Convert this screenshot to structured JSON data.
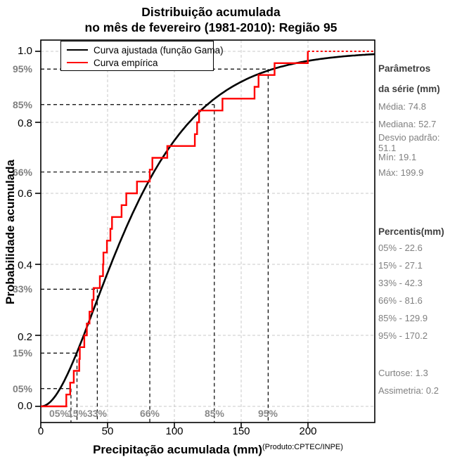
{
  "title": {
    "line1": "Distribuição acumulada",
    "line2": "no mês de fevereiro (1981-2010): Região 95"
  },
  "legend": {
    "items": [
      {
        "label": "Curva ajustada (função Gama)",
        "color": "#000000"
      },
      {
        "label": "Curva empírica",
        "color": "#ff0000"
      }
    ]
  },
  "axes": {
    "x": {
      "label": "Precipitação acumulada (mm)",
      "annotation": "(Produto:CPTEC/INPE)",
      "ticks": [
        "0",
        "50",
        "100",
        "150",
        "200"
      ]
    },
    "y": {
      "label": "Probabilidade acumulada",
      "ticks": [
        "1.0",
        "0.8",
        "0.6",
        "0.4",
        "0.2",
        "0.0"
      ],
      "percent_ticks": [
        "95%",
        "85%",
        "66%",
        "33%",
        "15%",
        "05%"
      ]
    }
  },
  "sidebar": {
    "params_title_line1": "Parâmetros",
    "params_title_line2": "da série (mm)",
    "params": [
      "Média: 74.8",
      "Mediana: 52.7",
      "Desvio padrão: 51.1",
      "Mín: 19.1",
      "Máx: 199.9"
    ],
    "percentis_title": "Percentis(mm)",
    "percentis": [
      "05% - 22.6",
      "15% - 27.1",
      "33% - 42.3",
      "66% - 81.6",
      "85% - 129.9",
      "95% - 170.2"
    ],
    "curtose": "Curtose: 1.3",
    "assimetria": "Assimetria: 0.2"
  },
  "chart_data": {
    "type": "line",
    "title": "Distribuição acumulada no mês de fevereiro (1981-2010): Região 95",
    "xlabel": "Precipitação acumulada (mm)",
    "ylabel": "Probabilidade acumulada",
    "xlim": [
      0,
      250
    ],
    "ylim": [
      0,
      1
    ],
    "x_ticks": [
      0,
      50,
      100,
      150,
      200
    ],
    "y_ticks": [
      0.0,
      0.2,
      0.4,
      0.6,
      0.8,
      1.0
    ],
    "grid": true,
    "legend_position": "top-left",
    "colors": {
      "fitted": "#000000",
      "empirical": "#ff0000",
      "grid": "#c9c9c9",
      "guide": "#000000",
      "muted_label": "#7f7f7f"
    },
    "series": [
      {
        "name": "Curva ajustada (função Gama)",
        "color": "#000000",
        "model": "gamma_cdf",
        "shape": 2.14,
        "scale": 34.95
      },
      {
        "name": "Curva empírica",
        "color": "#ff0000",
        "model": "empirical_cdf",
        "values": [
          19.1,
          22.0,
          24.7,
          28.8,
          29.2,
          32.6,
          34.5,
          36.5,
          38.5,
          39.5,
          44.2,
          46.6,
          46.9,
          49.5,
          52.1,
          53.3,
          60.5,
          64.0,
          72.0,
          81.6,
          83.5,
          94.7,
          115.3,
          117.0,
          118.5,
          136.0,
          160.0,
          163.0,
          175.0,
          199.9
        ]
      }
    ],
    "percentile_guides": [
      {
        "label": "05%",
        "p": 0.05,
        "value": 22.6
      },
      {
        "label": "15%",
        "p": 0.15,
        "value": 27.1
      },
      {
        "label": "33%",
        "p": 0.33,
        "value": 42.3
      },
      {
        "label": "66%",
        "p": 0.66,
        "value": 81.6
      },
      {
        "label": "85%",
        "p": 0.85,
        "value": 129.9
      },
      {
        "label": "95%",
        "p": 0.95,
        "value": 170.2
      }
    ],
    "stats": {
      "mean": 74.8,
      "median": 52.7,
      "std_dev": 51.1,
      "min": 19.1,
      "max": 199.9,
      "kurtosis": 1.3,
      "skewness": 0.2
    }
  }
}
